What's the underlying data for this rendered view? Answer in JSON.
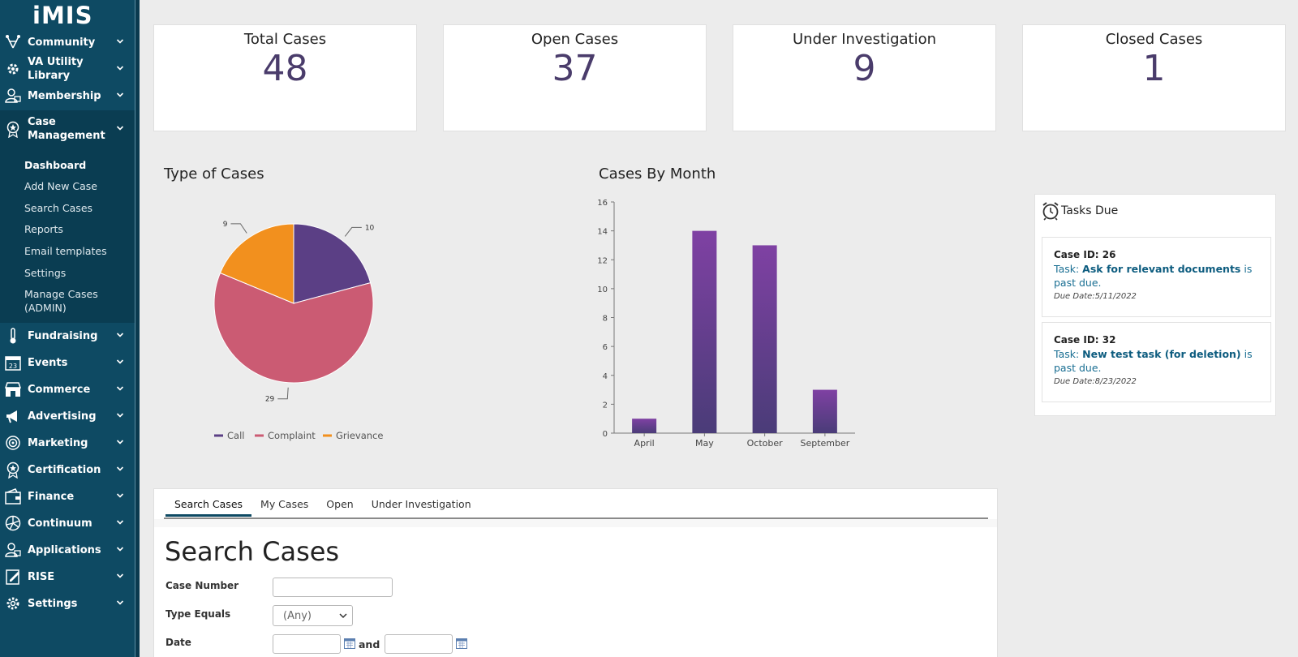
{
  "sidebar": {
    "logo": "iMIS",
    "items": [
      {
        "label": "Community",
        "icon": "community-icon"
      },
      {
        "label": "VA Utility Library",
        "icon": "gear-wrench-icon"
      },
      {
        "label": "Membership",
        "icon": "membership-icon"
      },
      {
        "label": "Case Management",
        "icon": "star-badge-icon"
      },
      {
        "label": "Fundraising",
        "icon": "thermometer-icon"
      },
      {
        "label": "Events",
        "icon": "calendar-icon"
      },
      {
        "label": "Commerce",
        "icon": "store-icon"
      },
      {
        "label": "Advertising",
        "icon": "megaphone-icon"
      },
      {
        "label": "Marketing",
        "icon": "target-icon"
      },
      {
        "label": "Certification",
        "icon": "award-icon"
      },
      {
        "label": "Finance",
        "icon": "wallet-icon"
      },
      {
        "label": "Continuum",
        "icon": "continuum-icon"
      },
      {
        "label": "Applications",
        "icon": "applications-icon"
      },
      {
        "label": "RISE",
        "icon": "edit-page-icon"
      },
      {
        "label": "Settings",
        "icon": "settings-gear-icon"
      }
    ],
    "case_management_sub": [
      {
        "label": "Dashboard",
        "active": true
      },
      {
        "label": "Add New Case"
      },
      {
        "label": "Search Cases"
      },
      {
        "label": "Reports"
      },
      {
        "label": "Email templates"
      },
      {
        "label": "Settings"
      },
      {
        "label": "Manage Cases (ADMIN)"
      }
    ]
  },
  "stats": [
    {
      "title": "Total Cases",
      "value": "48"
    },
    {
      "title": "Open Cases",
      "value": "37"
    },
    {
      "title": "Under Investigation",
      "value": "9"
    },
    {
      "title": "Closed Cases",
      "value": "1"
    }
  ],
  "charts": {
    "pie_title": "Type of Cases",
    "bar_title": "Cases By Month"
  },
  "chart_data": [
    {
      "type": "pie",
      "title": "Type of Cases",
      "categories": [
        "Call",
        "Complaint",
        "Grievance"
      ],
      "values": [
        10,
        29,
        9
      ],
      "colors": [
        "#5b3f85",
        "#cb5b73",
        "#f2901e"
      ],
      "legend": "bottom"
    },
    {
      "type": "bar",
      "title": "Cases By Month",
      "categories": [
        "April",
        "May",
        "October",
        "September"
      ],
      "values": [
        1,
        14,
        13,
        3
      ],
      "ylim": [
        0,
        16
      ],
      "yticks": [
        0,
        2,
        4,
        6,
        8,
        10,
        12,
        14,
        16
      ],
      "color_top": "#7f41a3",
      "color_bottom": "#4a3c78",
      "grid": false
    }
  ],
  "tasks": {
    "title": "Tasks Due",
    "items": [
      {
        "case_id": "Case ID: 26",
        "prefix": "Task: ",
        "task": "Ask for relevant documents",
        "suffix": " is past due.",
        "due": "Due Date:5/11/2022"
      },
      {
        "case_id": "Case ID: 32",
        "prefix": "Task: ",
        "task": "New test task (for deletion)",
        "suffix": " is past due.",
        "due": "Due Date:8/23/2022"
      }
    ]
  },
  "search": {
    "tabs": [
      "Search Cases",
      "My Cases",
      "Open",
      "Under Investigation"
    ],
    "active_tab": 0,
    "title": "Search Cases",
    "case_number_label": "Case Number",
    "case_number_value": "",
    "type_label": "Type Equals",
    "type_value": "(Any)",
    "date_label": "Date",
    "date_from": "",
    "date_and": "and",
    "date_to": ""
  }
}
